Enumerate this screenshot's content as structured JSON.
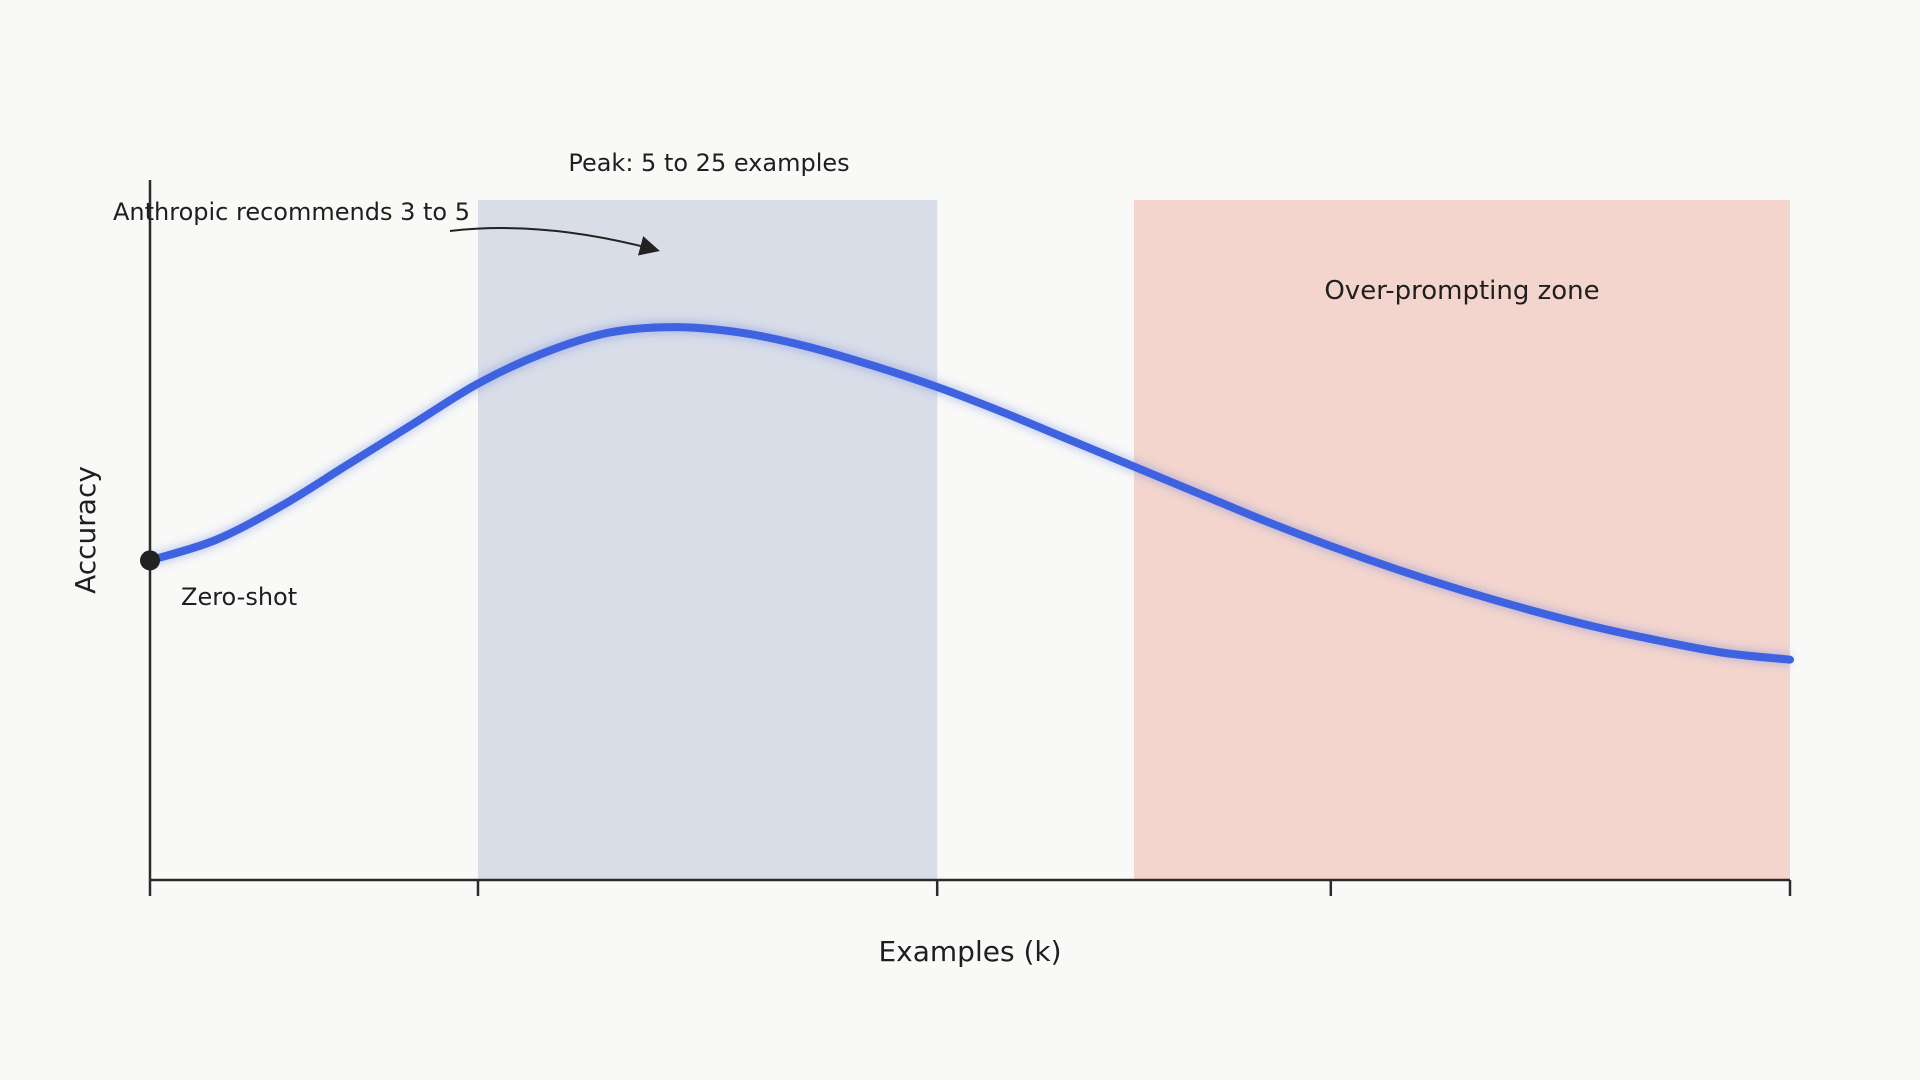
{
  "chart_data": {
    "type": "line",
    "title": "",
    "xlabel": "Examples (k)",
    "ylabel": "Accuracy",
    "xlim": [
      0,
      100
    ],
    "ylim": [
      0,
      100
    ],
    "x_ticks": [
      0,
      20,
      48,
      72,
      100
    ],
    "x_tick_labels": [],
    "grid": false,
    "legend": "none",
    "series": [
      {
        "color": "#3f63e0",
        "x": [
          0,
          4,
          8,
          12,
          16,
          20,
          24,
          28,
          32,
          36,
          40,
          44,
          48,
          52,
          56,
          60,
          64,
          68,
          72,
          76,
          80,
          84,
          88,
          92,
          96,
          100
        ],
        "y": [
          47,
          50,
          55,
          61,
          67,
          73,
          77.5,
          80.5,
          81.3,
          80.5,
          78.5,
          75.7,
          72.5,
          68.8,
          64.8,
          60.8,
          56.8,
          52.8,
          49.1,
          45.7,
          42.6,
          39.8,
          37.3,
          35.2,
          33.4,
          32.4
        ]
      }
    ],
    "bands": [
      {
        "label": "Peak: 5 to 25 examples",
        "x0": 20,
        "x1": 48,
        "color": "#d9dde8"
      },
      {
        "label": "Over-prompting zone",
        "x0": 60,
        "x1": 100,
        "color": "#f4d5cd"
      }
    ],
    "annotations": [
      {
        "text": "Anthropic recommends 3 to 5",
        "target_x": 31,
        "target_y": 81
      },
      {
        "text": "Zero-shot",
        "x": 0,
        "y": 47
      }
    ]
  }
}
